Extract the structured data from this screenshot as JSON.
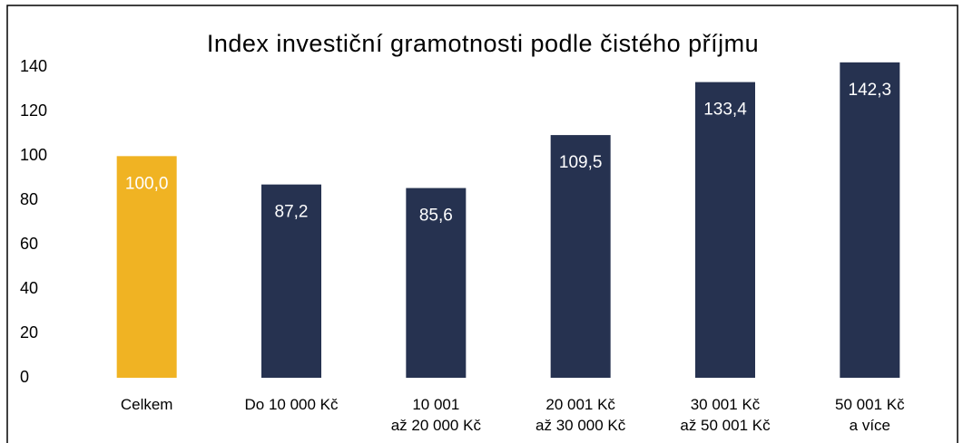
{
  "chart_data": {
    "type": "bar",
    "title": "Index investiční gramotnosti podle čistého příjmu",
    "categories": [
      "Celkem",
      "Do 10 000 Kč",
      "10 001\naž 20 000 Kč",
      "20 001 Kč\naž 30 000 Kč",
      "30 001 Kč\naž 50 001 Kč",
      "50 001 Kč\na více"
    ],
    "values": [
      100.0,
      87.2,
      85.6,
      109.5,
      133.4,
      142.3
    ],
    "value_labels": [
      "100,0",
      "87,2",
      "85,6",
      "109,5",
      "133,4",
      "142,3"
    ],
    "colors": [
      "#f0b323",
      "#263250",
      "#263250",
      "#263250",
      "#263250",
      "#263250"
    ],
    "ylim": [
      0,
      150
    ],
    "yticks": [
      0,
      20,
      40,
      60,
      80,
      100,
      120,
      140
    ],
    "grid": false
  }
}
